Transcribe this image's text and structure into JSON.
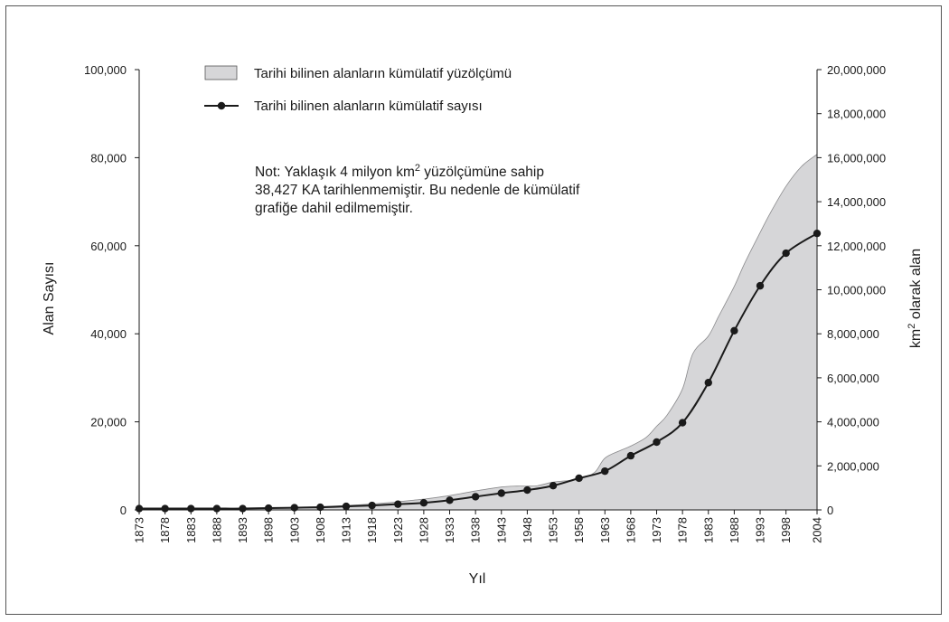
{
  "chart_data": {
    "type": "area",
    "x_ticks": [
      1873,
      1878,
      1883,
      1888,
      1893,
      1898,
      1903,
      1908,
      1913,
      1918,
      1923,
      1928,
      1933,
      1938,
      1943,
      1948,
      1953,
      1958,
      1963,
      1968,
      1973,
      1978,
      1983,
      1988,
      1993,
      1998,
      2004
    ],
    "xlim": [
      1873,
      2004
    ],
    "xlabel": "Yıl",
    "ylabel_left": "Alan Sayısı",
    "ylabel_right_sup": "2",
    "ylabel_right_pre": "km",
    "ylabel_right_post": " olarak alan",
    "ylim_left": [
      0,
      100000
    ],
    "ylim_right": [
      0,
      20000000
    ],
    "yticks_left": [
      "0",
      "20,000",
      "40,000",
      "60,000",
      "80,000",
      "100,000"
    ],
    "yticks_right": [
      "0",
      "2,000,000",
      "4,000,000",
      "6,000,000",
      "8,000,000",
      "10,000,000",
      "12,000,000",
      "14,000,000",
      "16,000,000",
      "18,000,000",
      "20,000,000"
    ],
    "legend_position": "top-left",
    "grid": false,
    "series": [
      {
        "name": "Tarihi bilinen alanların kümülatif yüzölçümü",
        "type": "area",
        "axis": "right",
        "color": "#d6d6d8",
        "x": [
          1873,
          1878,
          1883,
          1888,
          1893,
          1898,
          1903,
          1908,
          1913,
          1918,
          1923,
          1926,
          1928,
          1933,
          1938,
          1943,
          1946,
          1948,
          1950,
          1953,
          1958,
          1961,
          1963,
          1966,
          1968,
          1971,
          1973,
          1975,
          1978,
          1980,
          1983,
          1985,
          1988,
          1990,
          1993,
          1995,
          1998,
          2001,
          2004
        ],
        "values": [
          0,
          10000,
          20000,
          30000,
          50000,
          80000,
          110000,
          150000,
          200000,
          270000,
          370000,
          440000,
          490000,
          650000,
          860000,
          1040000,
          1080000,
          1080000,
          1100000,
          1260000,
          1400000,
          1700000,
          2350000,
          2700000,
          2900000,
          3300000,
          3800000,
          4300000,
          5500000,
          7100000,
          7900000,
          8800000,
          10150000,
          11200000,
          12600000,
          13500000,
          14700000,
          15600000,
          16150000
        ]
      },
      {
        "name": "Tarihi bilinen alanların kümülatif sayısı",
        "type": "line",
        "axis": "left",
        "color": "#1a1a1a",
        "x": [
          1873,
          1878,
          1883,
          1888,
          1893,
          1898,
          1903,
          1908,
          1913,
          1918,
          1923,
          1928,
          1933,
          1938,
          1943,
          1948,
          1953,
          1958,
          1963,
          1968,
          1973,
          1978,
          1983,
          1988,
          1993,
          1998,
          2004
        ],
        "values": [
          300,
          300,
          300,
          300,
          300,
          400,
          500,
          600,
          800,
          1000,
          1300,
          1600,
          2200,
          3000,
          3800,
          4500,
          5500,
          7200,
          8800,
          12300,
          15400,
          19800,
          28900,
          40700,
          50900,
          58300,
          62800
        ]
      }
    ],
    "legend": [
      "Tarihi bilinen alanların kümülatif yüzölçümü",
      "Tarihi bilinen alanların kümülatif sayısı"
    ],
    "note": {
      "line1_pre": "Not: Yaklaşık 4 milyon km",
      "line1_sup": "2",
      "line1_post": " yüzölçümüne sahip",
      "line2": "38,427 KA tarihlenmemiştir. Bu nedenle de kümülatif",
      "line3": "grafiğe dahil edilmemiştir."
    }
  }
}
